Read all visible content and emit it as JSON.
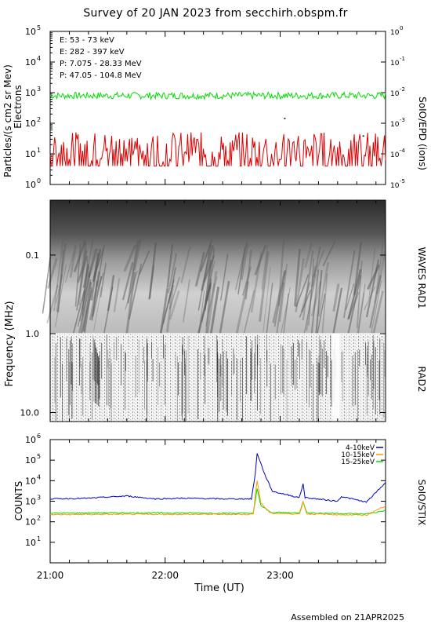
{
  "title": "Survey of 20 JAN 2023 from secchirh.obspm.fr",
  "footer": "Assembled on 21APR2025",
  "colors": {
    "green": "#00dd00",
    "red": "#dd0000",
    "black": "#000000",
    "blue": "#0000cc",
    "orange": "#ff9900"
  },
  "chart_data": [
    {
      "type": "line",
      "name": "SoIO/EPD (ions)",
      "ylabel": "Particles/(s cm2 sr Mev)",
      "ylabel2": "Electrons",
      "right_label": "SoIO/EPD (ions)",
      "y_scale": "log",
      "ylim": [
        1,
        100000
      ],
      "y2lim": [
        1e-05,
        1
      ],
      "xlim": [
        "21:00",
        "23:55"
      ],
      "y_ticks": [
        "10^0",
        "10^1",
        "10^2",
        "10^3",
        "10^4",
        "10^5"
      ],
      "y2_ticks": [
        "10^-5",
        "10^-4",
        "10^-3",
        "10^-2",
        "10^-1",
        "10^0"
      ],
      "legend": [
        {
          "label": "E: 53 - 73 keV",
          "color": "#00dd00"
        },
        {
          "label": "E: 282 - 397 keV",
          "color": "#dd0000"
        },
        {
          "label": "P: 7.075 - 28.33 MeV",
          "color": "#000000"
        },
        {
          "label": "P: 47.05 - 104.8 MeV",
          "color": "#0000cc"
        }
      ],
      "series": [
        {
          "name": "E: 53 - 73 keV",
          "typical": 800,
          "range": [
            500,
            1300
          ]
        },
        {
          "name": "E: 282 - 397 keV",
          "typical": 12,
          "range": [
            4,
            50
          ]
        }
      ],
      "points": [
        {
          "series": "P: 7.075 - 28.33 MeV",
          "time": "23:02",
          "value": 0.0015
        },
        {
          "series": "P: 7.075 - 28.33 MeV",
          "time": "23:43",
          "value": 0.0004
        }
      ]
    },
    {
      "type": "heatmap",
      "name": "WAVES RAD1",
      "ylabel": "Frequency (MHz)",
      "right_label": "WAVES RAD1",
      "y_scale": "log",
      "ylim": [
        0.02,
        1.0
      ],
      "y_ticks": [
        "0.1",
        "1.0"
      ],
      "xlim": [
        "21:00",
        "23:55"
      ]
    },
    {
      "type": "heatmap",
      "name": "RAD2",
      "right_label": "RAD2",
      "y_scale": "log",
      "ylim": [
        1.0,
        13.0
      ],
      "y_ticks": [
        "1.0",
        "10.0"
      ],
      "xlim": [
        "21:00",
        "23:55"
      ]
    },
    {
      "type": "line",
      "name": "SoIO/STIX",
      "ylabel": "COUNTS",
      "right_label": "SoIO/STIX",
      "xlabel": "Time (UT)",
      "y_scale": "log",
      "ylim": [
        1,
        1000000
      ],
      "y_ticks": [
        "10^1",
        "10^2",
        "10^3",
        "10^4",
        "10^5",
        "10^6"
      ],
      "x_ticks": [
        "21:00",
        "22:00",
        "23:00"
      ],
      "xlim": [
        "21:00",
        "23:55"
      ],
      "legend": [
        {
          "label": "4-10keV",
          "color": "#0000cc"
        },
        {
          "label": "10-15keV",
          "color": "#ff9900"
        },
        {
          "label": "15-25keV",
          "color": "#00dd00"
        }
      ],
      "series": [
        {
          "name": "4-10keV",
          "color": "#0000cc",
          "points": [
            [
              "21:00",
              1300
            ],
            [
              "21:20",
              1400
            ],
            [
              "21:40",
              1800
            ],
            [
              "21:55",
              1300
            ],
            [
              "22:10",
              1400
            ],
            [
              "22:30",
              1300
            ],
            [
              "22:45",
              1300
            ],
            [
              "22:47",
              20000
            ],
            [
              "22:48",
              220000
            ],
            [
              "22:52",
              20000
            ],
            [
              "22:56",
              3000
            ],
            [
              "23:10",
              1500
            ],
            [
              "23:12",
              7000
            ],
            [
              "23:13",
              1500
            ],
            [
              "23:30",
              1000
            ],
            [
              "23:32",
              1700
            ],
            [
              "23:45",
              900
            ],
            [
              "23:55",
              8000
            ]
          ]
        },
        {
          "name": "10-15keV",
          "color": "#ff9900",
          "points": [
            [
              "21:00",
              220
            ],
            [
              "21:30",
              230
            ],
            [
              "22:00",
              230
            ],
            [
              "22:30",
              230
            ],
            [
              "22:46",
              230
            ],
            [
              "22:47",
              2000
            ],
            [
              "22:48",
              10000
            ],
            [
              "22:50",
              800
            ],
            [
              "22:55",
              260
            ],
            [
              "23:10",
              240
            ],
            [
              "23:12",
              900
            ],
            [
              "23:14",
              240
            ],
            [
              "23:45",
              210
            ],
            [
              "23:55",
              600
            ]
          ]
        },
        {
          "name": "15-25keV",
          "color": "#00dd00",
          "points": [
            [
              "21:00",
              260
            ],
            [
              "21:30",
              270
            ],
            [
              "22:00",
              270
            ],
            [
              "22:30",
              260
            ],
            [
              "22:46",
              260
            ],
            [
              "22:47",
              1000
            ],
            [
              "22:48",
              4000
            ],
            [
              "22:50",
              600
            ],
            [
              "22:55",
              290
            ],
            [
              "23:10",
              270
            ],
            [
              "23:12",
              1000
            ],
            [
              "23:14",
              270
            ],
            [
              "23:45",
              240
            ],
            [
              "23:55",
              350
            ]
          ]
        }
      ]
    }
  ]
}
